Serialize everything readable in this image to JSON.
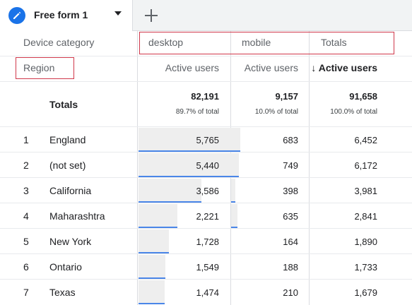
{
  "tab": {
    "title": "Free form 1",
    "icon": "pencil-icon"
  },
  "add_tab_icon": "plus-icon",
  "header": {
    "dimension_label": "Device category",
    "columns": [
      "desktop",
      "mobile",
      "Totals"
    ],
    "row_dimension": "Region",
    "metrics": [
      "Active users",
      "Active users",
      "Active users"
    ],
    "sort_arrow": "↓"
  },
  "totals": {
    "label": "Totals",
    "values": [
      "82,191",
      "9,157",
      "91,658"
    ],
    "percents": [
      "89.7% of total",
      "10.0% of total",
      "100.0% of total"
    ]
  },
  "rows": [
    {
      "index": "1",
      "name": "England",
      "desktop": "5,765",
      "mobile": "683",
      "total": "6,452",
      "desktop_share": 1.0,
      "mobile_share": 1.0
    },
    {
      "index": "2",
      "name": "(not set)",
      "desktop": "5,440",
      "mobile": "749",
      "total": "6,172",
      "desktop_share": 0.944,
      "mobile_share": 0.84
    },
    {
      "index": "3",
      "name": "California",
      "desktop": "3,586",
      "mobile": "398",
      "total": "3,981",
      "desktop_share": 0.622,
      "mobile_share": 0.45
    },
    {
      "index": "4",
      "name": "Maharashtra",
      "desktop": "2,221",
      "mobile": "635",
      "total": "2,841",
      "desktop_share": 0.385,
      "mobile_share": 0.71
    },
    {
      "index": "5",
      "name": "New York",
      "desktop": "1,728",
      "mobile": "164",
      "total": "1,890",
      "desktop_share": 0.3,
      "mobile_share": 0.0
    },
    {
      "index": "6",
      "name": "Ontario",
      "desktop": "1,549",
      "mobile": "188",
      "total": "1,733",
      "desktop_share": 0.269,
      "mobile_share": 0.0
    },
    {
      "index": "7",
      "name": "Texas",
      "desktop": "1,474",
      "mobile": "210",
      "total": "1,679",
      "desktop_share": 0.256,
      "mobile_share": 0.0
    }
  ]
}
